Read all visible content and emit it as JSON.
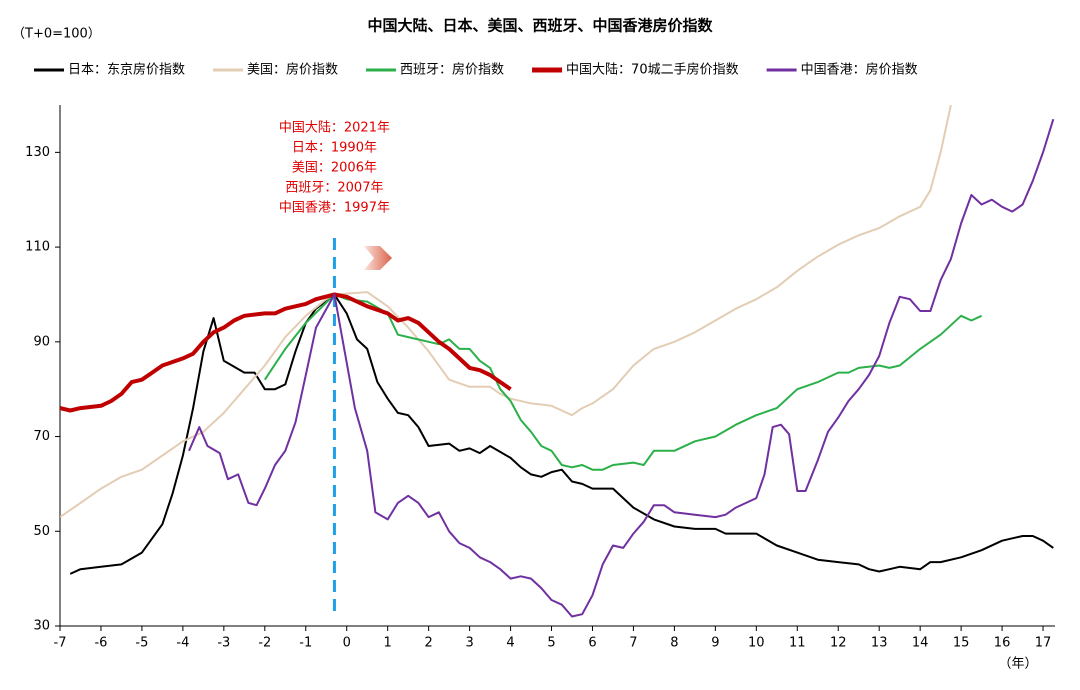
{
  "chart_data": {
    "type": "line",
    "title": "中国大陆、日本、美国、西班牙、中国香港房价指数",
    "subtitle": "（T+0=100）",
    "x_label": "（年）",
    "annotations": [
      "中国大陆：2021年",
      "日本：1990年",
      "美国：2006年",
      "西班牙：2007年",
      "中国香港：1997年"
    ],
    "vline": -0.3,
    "xlim": [
      -7,
      17.3
    ],
    "ylim": [
      30,
      140
    ],
    "xticks": [
      -7,
      -6,
      -5,
      -4,
      -3,
      -2,
      -1,
      0,
      1,
      2,
      3,
      4,
      5,
      6,
      7,
      8,
      9,
      10,
      11,
      12,
      13,
      14,
      15,
      16,
      17
    ],
    "yticks": [
      30,
      50,
      70,
      90,
      110,
      130
    ],
    "series": [
      {
        "name": "日本：东京房价指数",
        "color": "#000000",
        "width": 2,
        "x": [
          -6.75,
          -6.5,
          -6,
          -5.5,
          -5,
          -4.5,
          -4.25,
          -4,
          -3.75,
          -3.5,
          -3.25,
          -3,
          -2.5,
          -2.25,
          -2,
          -1.75,
          -1.5,
          -1.25,
          -1,
          -0.75,
          -0.3,
          0,
          0.25,
          0.5,
          0.75,
          1,
          1.25,
          1.5,
          1.75,
          2,
          2.5,
          2.75,
          3,
          3.25,
          3.5,
          4,
          4.25,
          4.5,
          4.75,
          5,
          5.25,
          5.5,
          5.75,
          6,
          6.5,
          6.75,
          7,
          7.5,
          8,
          8.5,
          9,
          9.25,
          9.5,
          10,
          10.5,
          11,
          11.5,
          12,
          12.5,
          12.75,
          13,
          13.25,
          13.5,
          14,
          14.25,
          14.5,
          15,
          15.5,
          16,
          16.5,
          16.75,
          17,
          17.25
        ],
        "values": [
          41,
          42,
          42.5,
          43,
          45.5,
          51.5,
          58,
          66,
          76,
          88,
          95,
          86,
          83.5,
          83.5,
          80,
          80,
          81,
          88,
          94,
          97,
          100,
          96,
          90.5,
          88.5,
          81.5,
          78,
          75,
          74.5,
          72,
          68,
          68.5,
          67,
          67.5,
          66.5,
          68,
          65.5,
          63.5,
          62,
          61.5,
          62.5,
          63,
          60.5,
          60,
          59,
          59,
          57,
          55,
          52.5,
          51,
          50.5,
          50.5,
          49.5,
          49.5,
          49.5,
          47,
          45.5,
          44,
          43.5,
          43,
          42,
          41.5,
          42,
          42.5,
          42,
          43.5,
          43.5,
          44.5,
          46,
          48,
          49,
          49,
          48,
          46.5
        ]
      },
      {
        "name": "美国：房价指数",
        "color": "#e3cdb4",
        "width": 2,
        "x": [
          -7,
          -6.5,
          -6,
          -5.5,
          -5,
          -4.5,
          -4,
          -3.5,
          -3,
          -2.5,
          -2,
          -1.5,
          -1,
          -0.5,
          -0.3,
          0.5,
          1,
          1.5,
          2,
          2.5,
          3,
          3.5,
          3.75,
          4,
          4.5,
          5,
          5.25,
          5.5,
          5.75,
          6,
          6.5,
          7,
          7.5,
          8,
          8.5,
          9,
          9.5,
          10,
          10.5,
          11,
          11.5,
          12,
          12.5,
          13,
          13.5,
          14,
          14.25,
          14.5,
          14.75
        ],
        "values": [
          53,
          56,
          59,
          61.5,
          63,
          66,
          69,
          71,
          75,
          80,
          85,
          91,
          95.5,
          99,
          100,
          100.5,
          97.5,
          93,
          88,
          82,
          80.5,
          80.5,
          79,
          78,
          77,
          76.5,
          75.5,
          74.5,
          76,
          77,
          80,
          85,
          88.5,
          90,
          92,
          94.5,
          97,
          99,
          101.5,
          105,
          108,
          110.5,
          112.5,
          114,
          116.5,
          118.5,
          122,
          130,
          140
        ]
      },
      {
        "name": "西班牙：房价指数",
        "color": "#2bb04a",
        "width": 2,
        "x": [
          -2,
          -1.5,
          -1,
          -0.3,
          0,
          0.5,
          1,
          1.25,
          1.5,
          2,
          2.25,
          2.5,
          2.75,
          3,
          3.25,
          3.5,
          3.75,
          4,
          4.25,
          4.5,
          4.75,
          5,
          5.25,
          5.5,
          5.75,
          6,
          6.25,
          6.5,
          7,
          7.25,
          7.5,
          8,
          8.5,
          9,
          9.5,
          10,
          10.5,
          11,
          11.5,
          12,
          12.25,
          12.5,
          13,
          13.25,
          13.5,
          14,
          14.5,
          15,
          15.25,
          15.5
        ],
        "values": [
          82,
          88.5,
          94,
          100,
          99,
          98.5,
          96,
          91.5,
          91,
          90,
          89.5,
          90.5,
          88.5,
          88.5,
          86,
          84.5,
          80,
          77.5,
          73.5,
          71,
          68,
          67,
          64,
          63.5,
          64,
          63,
          63,
          64,
          64.5,
          64,
          67,
          67,
          69,
          70,
          72.5,
          74.5,
          76,
          80,
          81.5,
          83.5,
          83.5,
          84.5,
          85,
          84.5,
          85,
          88.5,
          91.5,
          95.5,
          94.5,
          95.5
        ]
      },
      {
        "name": "中国大陆：70城二手房价指数",
        "color": "#c00000",
        "width": 4,
        "x": [
          -7,
          -6.75,
          -6.5,
          -6,
          -5.75,
          -5.5,
          -5.25,
          -5,
          -4.75,
          -4.5,
          -4,
          -3.75,
          -3.5,
          -3.25,
          -3,
          -2.75,
          -2.5,
          -2,
          -1.75,
          -1.5,
          -1.25,
          -1,
          -0.75,
          -0.3,
          0,
          0.5,
          1,
          1.25,
          1.5,
          1.75,
          2,
          2.25,
          2.5,
          2.75,
          3,
          3.25,
          3.5,
          3.75,
          4
        ],
        "values": [
          76,
          75.5,
          76,
          76.5,
          77.5,
          79,
          81.5,
          82,
          83.5,
          85,
          86.5,
          87.5,
          90,
          92,
          93,
          94.5,
          95.5,
          96,
          96,
          97,
          97.5,
          98,
          99,
          100,
          99.5,
          97.5,
          96,
          94.5,
          95,
          94,
          92,
          90,
          88.5,
          86.5,
          84.5,
          84,
          83,
          81.5,
          80
        ]
      },
      {
        "name": "中国香港：房价指数",
        "color": "#7030a0",
        "width": 2,
        "x": [
          -3.85,
          -3.6,
          -3.4,
          -3.1,
          -2.9,
          -2.65,
          -2.4,
          -2.2,
          -2,
          -1.75,
          -1.5,
          -1.25,
          -1,
          -0.75,
          -0.3,
          0.2,
          0.5,
          0.7,
          1,
          1.25,
          1.5,
          1.75,
          2,
          2.25,
          2.5,
          2.75,
          3,
          3.25,
          3.5,
          3.75,
          4,
          4.25,
          4.5,
          4.75,
          5,
          5.25,
          5.5,
          5.75,
          6,
          6.25,
          6.5,
          6.75,
          7,
          7.25,
          7.5,
          7.75,
          8,
          8.5,
          9,
          9.25,
          9.5,
          10,
          10.2,
          10.4,
          10.6,
          10.8,
          11,
          11.2,
          11.5,
          11.75,
          12,
          12.25,
          12.5,
          12.75,
          13,
          13.25,
          13.5,
          13.75,
          14,
          14.25,
          14.5,
          14.75,
          15,
          15.25,
          15.5,
          15.75,
          16,
          16.25,
          16.5,
          16.75,
          17,
          17.25
        ],
        "values": [
          67,
          72,
          68,
          66.5,
          61,
          62,
          56,
          55.5,
          59,
          64,
          67,
          73,
          83,
          93,
          100,
          76,
          67,
          54,
          52.5,
          56,
          57.5,
          56,
          53,
          54,
          50,
          47.5,
          46.5,
          44.5,
          43.5,
          42,
          40,
          40.5,
          40,
          38,
          35.5,
          34.5,
          32,
          32.5,
          36.5,
          43,
          47,
          46.5,
          49.5,
          52,
          55.5,
          55.5,
          54,
          53.5,
          53,
          53.5,
          55,
          57,
          62,
          72,
          72.5,
          70.5,
          58.5,
          58.5,
          65,
          71,
          74,
          77.5,
          80,
          83,
          87,
          94,
          99.5,
          99,
          96.5,
          96.5,
          103,
          107.5,
          115,
          121,
          119,
          120,
          118.5,
          117.5,
          119,
          124,
          130,
          137
        ]
      }
    ]
  }
}
